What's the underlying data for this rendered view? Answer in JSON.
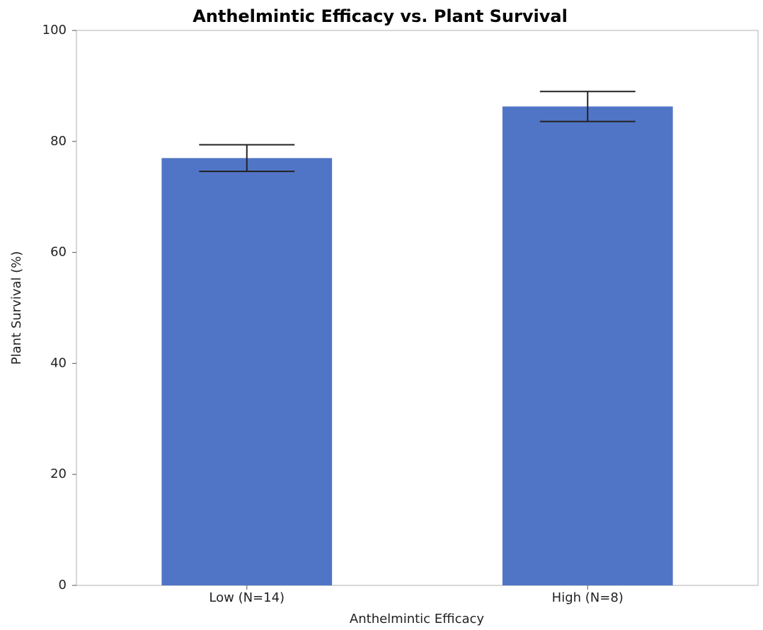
{
  "chart_data": {
    "type": "bar",
    "title": "Anthelmintic Efficacy vs. Plant Survival",
    "x_label": "Anthelmintic Efficacy",
    "y_label": "Plant Survival (%)",
    "categories": [
      "Low (N=14)",
      "High (N=8)"
    ],
    "values": [
      77,
      86.3
    ],
    "errors": [
      2.4,
      2.7
    ],
    "color": "#5175c6",
    "ylim": [
      0,
      100
    ],
    "yticks": [
      0,
      20,
      40,
      60,
      80,
      100
    ],
    "grid": false
  }
}
